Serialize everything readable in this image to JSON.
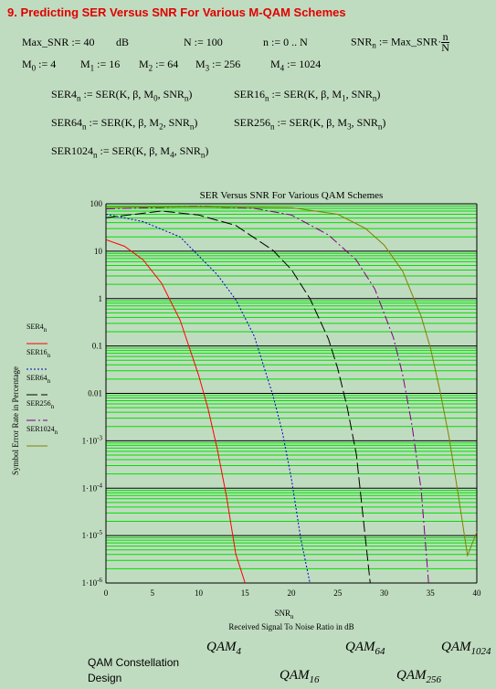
{
  "heading": "9. Predicting SER Versus SNR For Various M-QAM Schemes",
  "definitions": {
    "row1": {
      "max_snr": "Max_SNR := 40",
      "unit": "dB",
      "n_big": "N := 100",
      "n_range": "n := 0 .. N",
      "snr_lhs": "SNR",
      "snr_sub": "n",
      "snr_rhs": ":= Max_SNR·",
      "frac_num": "n",
      "frac_den": "N"
    },
    "row2": [
      {
        "sym": "M",
        "sub": "0",
        "val": ":= 4"
      },
      {
        "sym": "M",
        "sub": "1",
        "val": ":= 16"
      },
      {
        "sym": "M",
        "sub": "2",
        "val": ":= 64"
      },
      {
        "sym": "M",
        "sub": "3",
        "val": ":= 256"
      },
      {
        "sym": "M",
        "sub": "4",
        "val": ":= 1024"
      }
    ]
  },
  "equations": [
    {
      "lhs": "SER4",
      "m": "0"
    },
    {
      "lhs": "SER16",
      "m": "1"
    },
    {
      "lhs": "SER64",
      "m": "2"
    },
    {
      "lhs": "SER256",
      "m": "3"
    },
    {
      "lhs": "SER1024",
      "m": "4"
    }
  ],
  "eq_common": {
    "sub": "n",
    "assign": ":= SER(K, β, M",
    "snr": ", SNR",
    "close": ")"
  },
  "chart_data": {
    "type": "line",
    "title": "SER Versus SNR For Various QAM Schemes",
    "xlabel_sym": "SNR",
    "xlabel_sub": "n",
    "xlabel": "Received Signal To Noise Ratio in dB",
    "ylabel": "Symbol Error Rate in Percentage",
    "xlim": [
      0,
      40
    ],
    "ylim": [
      1e-06,
      100
    ],
    "y_scale": "log",
    "grid": true,
    "x_ticks": [
      "0",
      "5",
      "10",
      "15",
      "20",
      "25",
      "30",
      "35",
      "40"
    ],
    "y_ticks": [
      {
        "v": 100,
        "label": "100"
      },
      {
        "v": 10,
        "label": "10"
      },
      {
        "v": 1,
        "label": "1"
      },
      {
        "v": 0.1,
        "label": "0.1"
      },
      {
        "v": 0.01,
        "label": "0.01"
      },
      {
        "v": 0.001,
        "base": "1·10",
        "exp": "-3"
      },
      {
        "v": 0.0001,
        "base": "1·10",
        "exp": "-4"
      },
      {
        "v": 1e-05,
        "base": "1·10",
        "exp": "-5"
      },
      {
        "v": 1e-06,
        "base": "1·10",
        "exp": "-6"
      }
    ],
    "legend_placement": "left",
    "series": [
      {
        "name": "SER4",
        "sub": "n",
        "color": "#ff0000",
        "dash": "",
        "x": [
          0,
          2,
          4,
          6,
          8,
          10,
          11,
          12,
          13,
          14,
          15
        ],
        "y": [
          17.5,
          12.7,
          6.6,
          2.1,
          0.35,
          0.024,
          0.0048,
          0.00068,
          6.6e-05,
          4.1e-06,
          1e-06
        ]
      },
      {
        "name": "SER16",
        "sub": "n",
        "color": "#0000c0",
        "dash": "2,2",
        "x": [
          0,
          4,
          8,
          12,
          14,
          16,
          18,
          19,
          20,
          21,
          22
        ],
        "y": [
          60,
          42,
          20,
          3.2,
          0.95,
          0.16,
          0.0092,
          0.0016,
          0.00016,
          9e-06,
          1e-06
        ]
      },
      {
        "name": "SER64",
        "sub": "n",
        "color": "#000000",
        "dash": "12,4",
        "x": [
          0,
          6,
          10,
          14,
          18,
          20,
          22,
          24,
          25,
          26,
          27,
          28.5
        ],
        "y": [
          51,
          70,
          58,
          35,
          10.5,
          4.1,
          1.0,
          0.14,
          0.033,
          0.0053,
          0.00052,
          1e-06
        ]
      },
      {
        "name": "SER256",
        "sub": "n",
        "color": "#800080",
        "dash": "10,3,2,3",
        "x": [
          0,
          10,
          16,
          20,
          24,
          27,
          29,
          31,
          32,
          33,
          34,
          34.8
        ],
        "y": [
          78,
          88,
          80,
          58,
          22,
          6.5,
          1.6,
          0.15,
          0.025,
          0.0022,
          9.22e-05,
          1e-06
        ]
      },
      {
        "name": "SER1024",
        "sub": "n",
        "color": "#808000",
        "dash": "",
        "x": [
          0,
          10,
          20,
          25,
          28,
          30,
          32,
          34,
          35,
          36,
          37,
          38,
          39,
          40
        ],
        "y": [
          85,
          86,
          83,
          60,
          30,
          13.5,
          3.8,
          0.42,
          0.09,
          0.012,
          0.0012,
          7.2e-05,
          3.8e-06,
          1.2e-05
        ]
      }
    ]
  },
  "bottom": {
    "caption_line1": "QAM Constellation",
    "caption_line2": "Design",
    "qam_labels": [
      {
        "base": "QAM",
        "sub": "4"
      },
      {
        "base": "QAM",
        "sub": "16"
      },
      {
        "base": "QAM",
        "sub": "64"
      },
      {
        "base": "QAM",
        "sub": "256"
      },
      {
        "base": "QAM",
        "sub": "1024"
      }
    ]
  }
}
